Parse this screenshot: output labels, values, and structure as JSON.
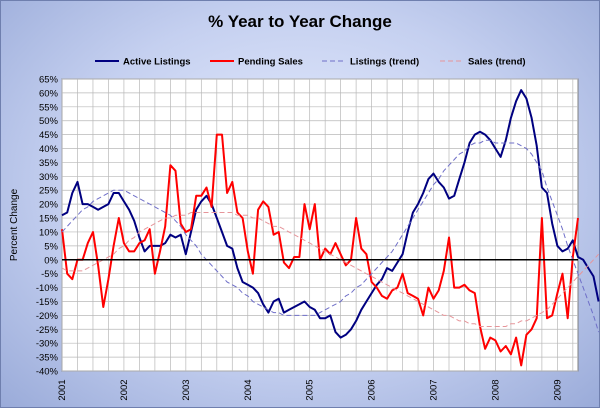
{
  "chart_data": {
    "type": "line",
    "title": "% Year to Year Change",
    "xlabel": "",
    "ylabel": "Percent Change",
    "ylim": [
      -0.4,
      0.65
    ],
    "yticks": [
      "65%",
      "60%",
      "55%",
      "50%",
      "45%",
      "40%",
      "35%",
      "30%",
      "25%",
      "20%",
      "15%",
      "10%",
      "5%",
      "0%",
      "-5%",
      "-10%",
      "-15%",
      "-20%",
      "-25%",
      "-30%",
      "-35%",
      "-40%"
    ],
    "xticks": [
      "2001",
      "2002",
      "2003",
      "2004",
      "2005",
      "2006",
      "2007",
      "2008",
      "2009"
    ],
    "x_start": "2001-01",
    "x_end": "2009-05",
    "grid": true,
    "legend_position": "top",
    "colors": {
      "active": "#000080",
      "pending": "#ff0000",
      "active_trend": "#6f6fc8",
      "pending_trend": "#e6959a",
      "zero_line": "#000000"
    },
    "series": [
      {
        "name": "Active Listings",
        "style": "solid",
        "values": [
          0.16,
          0.17,
          0.24,
          0.28,
          0.2,
          0.2,
          0.19,
          0.18,
          0.19,
          0.2,
          0.24,
          0.24,
          0.21,
          0.18,
          0.14,
          0.08,
          0.03,
          0.05,
          0.05,
          0.05,
          0.06,
          0.09,
          0.08,
          0.09,
          0.02,
          0.1,
          0.18,
          0.21,
          0.23,
          0.2,
          0.15,
          0.1,
          0.05,
          0.04,
          -0.03,
          -0.08,
          -0.09,
          -0.1,
          -0.12,
          -0.16,
          -0.19,
          -0.15,
          -0.14,
          -0.19,
          -0.18,
          -0.17,
          -0.16,
          -0.15,
          -0.17,
          -0.18,
          -0.21,
          -0.21,
          -0.2,
          -0.26,
          -0.28,
          -0.27,
          -0.25,
          -0.22,
          -0.18,
          -0.15,
          -0.12,
          -0.09,
          -0.07,
          -0.03,
          -0.04,
          -0.01,
          0.02,
          0.1,
          0.17,
          0.2,
          0.24,
          0.29,
          0.31,
          0.28,
          0.26,
          0.22,
          0.23,
          0.29,
          0.35,
          0.42,
          0.45,
          0.46,
          0.45,
          0.43,
          0.4,
          0.37,
          0.43,
          0.51,
          0.57,
          0.61,
          0.58,
          0.51,
          0.41,
          0.26,
          0.24,
          0.13,
          0.05,
          0.03,
          0.04,
          0.07,
          0.01,
          0.0,
          -0.03,
          -0.06,
          -0.15
        ]
      },
      {
        "name": "Pending Sales",
        "style": "solid",
        "values": [
          0.11,
          -0.05,
          -0.07,
          0.0,
          0.0,
          0.06,
          0.1,
          -0.02,
          -0.17,
          -0.07,
          0.05,
          0.15,
          0.06,
          0.03,
          0.03,
          0.06,
          0.07,
          0.11,
          -0.05,
          0.03,
          0.12,
          0.34,
          0.32,
          0.13,
          0.1,
          0.11,
          0.23,
          0.23,
          0.26,
          0.19,
          0.45,
          0.45,
          0.24,
          0.28,
          0.17,
          0.15,
          0.03,
          -0.05,
          0.18,
          0.21,
          0.19,
          0.09,
          0.1,
          -0.01,
          -0.03,
          0.01,
          0.01,
          0.2,
          0.11,
          0.2,
          0.0,
          0.04,
          0.02,
          0.06,
          0.02,
          -0.02,
          0.0,
          0.15,
          0.04,
          0.02,
          -0.08,
          -0.1,
          -0.13,
          -0.14,
          -0.11,
          -0.1,
          -0.05,
          -0.12,
          -0.13,
          -0.14,
          -0.2,
          -0.1,
          -0.14,
          -0.11,
          -0.04,
          0.08,
          -0.1,
          -0.1,
          -0.09,
          -0.11,
          -0.12,
          -0.24,
          -0.32,
          -0.28,
          -0.29,
          -0.33,
          -0.31,
          -0.34,
          -0.28,
          -0.38,
          -0.27,
          -0.25,
          -0.21,
          0.15,
          -0.21,
          -0.2,
          -0.12,
          -0.05,
          -0.21,
          0.01,
          0.15
        ]
      },
      {
        "name": "Listings (trend)",
        "style": "dashed",
        "values": [
          0.1,
          0.12,
          0.14,
          0.16,
          0.18,
          0.19,
          0.21,
          0.22,
          0.23,
          0.24,
          0.25,
          0.25,
          0.25,
          0.24,
          0.23,
          0.22,
          0.21,
          0.2,
          0.19,
          0.18,
          0.17,
          0.16,
          0.14,
          0.12,
          0.09,
          0.07,
          0.05,
          0.02,
          0.0,
          -0.02,
          -0.04,
          -0.06,
          -0.08,
          -0.09,
          -0.1,
          -0.12,
          -0.13,
          -0.15,
          -0.16,
          -0.17,
          -0.18,
          -0.19,
          -0.19,
          -0.2,
          -0.2,
          -0.2,
          -0.2,
          -0.2,
          -0.2,
          -0.2,
          -0.19,
          -0.18,
          -0.17,
          -0.16,
          -0.15,
          -0.13,
          -0.12,
          -0.1,
          -0.09,
          -0.07,
          -0.05,
          -0.03,
          -0.01,
          0.01,
          0.03,
          0.06,
          0.09,
          0.12,
          0.15,
          0.18,
          0.21,
          0.24,
          0.27,
          0.29,
          0.32,
          0.34,
          0.36,
          0.38,
          0.39,
          0.41,
          0.42,
          0.42,
          0.43,
          0.43,
          0.42,
          0.42,
          0.42,
          0.42,
          0.42,
          0.41,
          0.4,
          0.38,
          0.35,
          0.32,
          0.26,
          0.21,
          0.16,
          0.11,
          0.05,
          0.0,
          -0.05,
          -0.1,
          -0.15,
          -0.2,
          -0.26
        ]
      },
      {
        "name": "Sales (trend)",
        "style": "dashed",
        "values": [
          -0.03,
          -0.04,
          -0.04,
          -0.04,
          -0.04,
          -0.03,
          -0.02,
          -0.01,
          0.0,
          0.01,
          0.02,
          0.04,
          0.05,
          0.07,
          0.08,
          0.1,
          0.11,
          0.12,
          0.13,
          0.14,
          0.15,
          0.15,
          0.16,
          0.16,
          0.16,
          0.17,
          0.17,
          0.17,
          0.17,
          0.17,
          0.17,
          0.17,
          0.17,
          0.17,
          0.16,
          0.16,
          0.16,
          0.15,
          0.15,
          0.14,
          0.13,
          0.12,
          0.12,
          0.11,
          0.1,
          0.09,
          0.08,
          0.07,
          0.06,
          0.05,
          0.04,
          0.03,
          0.02,
          0.01,
          0.0,
          -0.01,
          -0.02,
          -0.03,
          -0.04,
          -0.05,
          -0.06,
          -0.07,
          -0.08,
          -0.09,
          -0.1,
          -0.11,
          -0.12,
          -0.13,
          -0.14,
          -0.15,
          -0.16,
          -0.17,
          -0.18,
          -0.19,
          -0.2,
          -0.2,
          -0.21,
          -0.22,
          -0.22,
          -0.23,
          -0.23,
          -0.24,
          -0.24,
          -0.24,
          -0.24,
          -0.24,
          -0.24,
          -0.23,
          -0.23,
          -0.22,
          -0.22,
          -0.21,
          -0.2,
          -0.19,
          -0.18,
          -0.16,
          -0.14,
          -0.12,
          -0.1,
          -0.08,
          -0.06,
          -0.04,
          -0.02,
          0.0,
          0.02
        ]
      }
    ]
  }
}
